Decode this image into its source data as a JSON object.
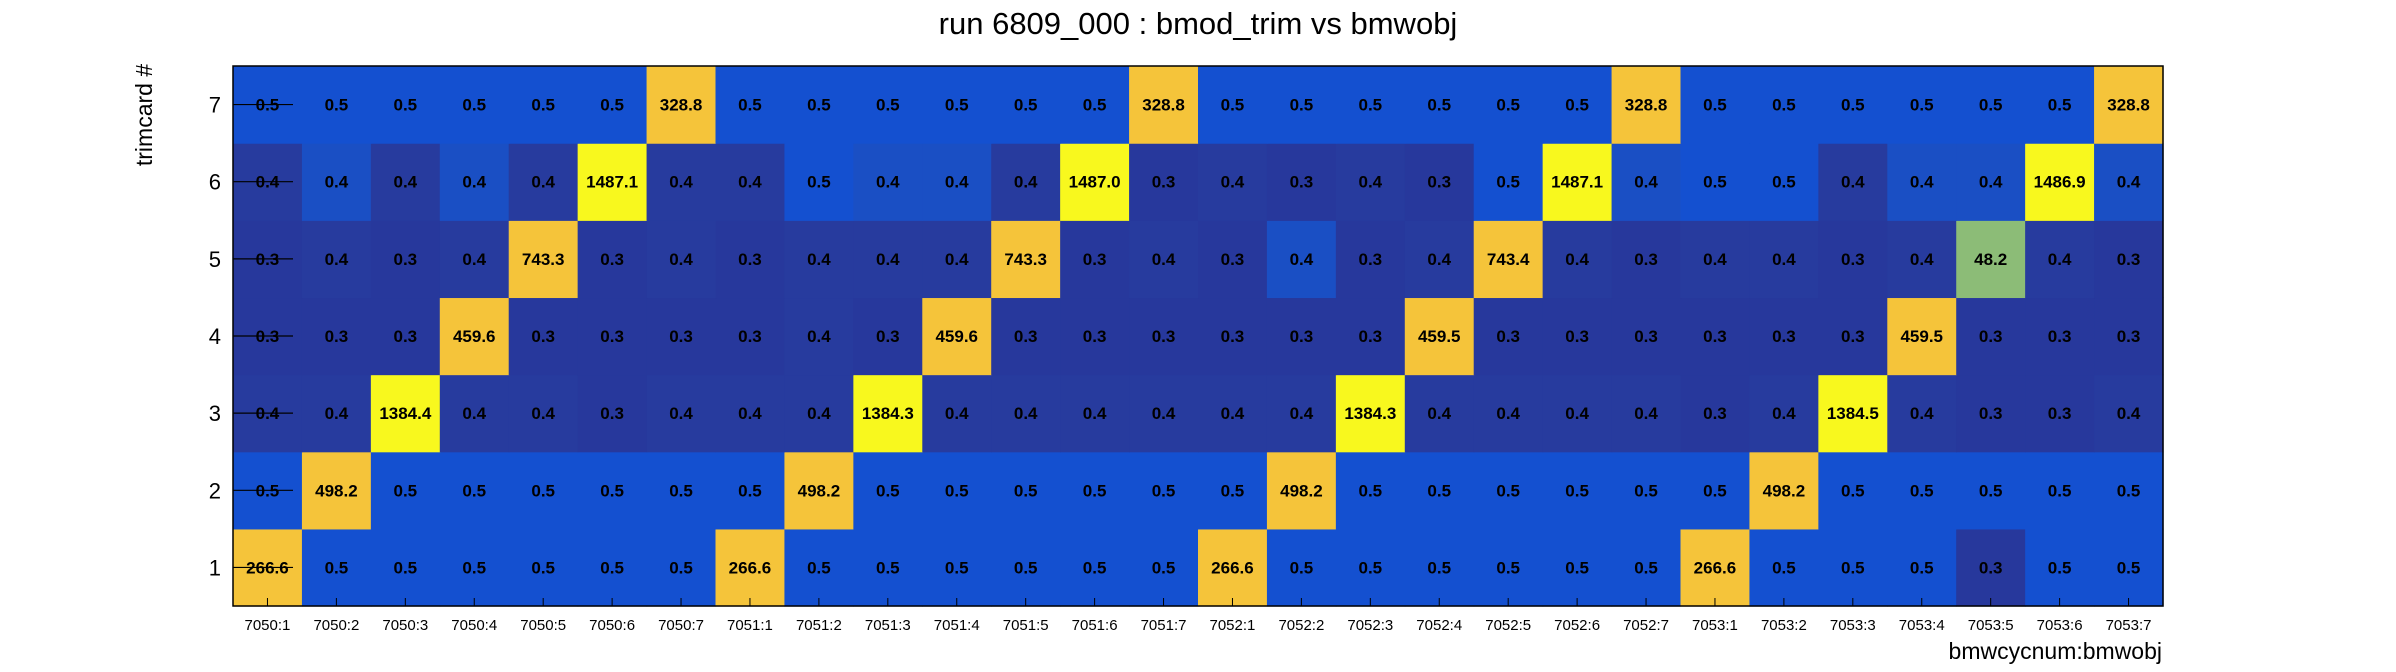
{
  "chart_data": {
    "type": "heatmap",
    "title": "run 6809_000 : bmod_trim vs bmwobj",
    "xlabel": "bmwcycnum:bmwobj",
    "ylabel": "trimcard #",
    "x_categories": [
      "7050:1",
      "7050:2",
      "7050:3",
      "7050:4",
      "7050:5",
      "7050:6",
      "7050:7",
      "7051:1",
      "7051:2",
      "7051:3",
      "7051:4",
      "7051:5",
      "7051:6",
      "7051:7",
      "7052:1",
      "7052:2",
      "7052:3",
      "7052:4",
      "7052:5",
      "7052:6",
      "7052:7",
      "7053:1",
      "7053:2",
      "7053:3",
      "7053:4",
      "7053:5",
      "7053:6",
      "7053:7"
    ],
    "y_categories": [
      "1",
      "2",
      "3",
      "4",
      "5",
      "6",
      "7"
    ],
    "value_labels": [
      [
        "266.6",
        "0.5",
        "0.5",
        "0.5",
        "0.5",
        "0.5",
        "0.5",
        "266.6",
        "0.5",
        "0.5",
        "0.5",
        "0.5",
        "0.5",
        "0.5",
        "266.6",
        "0.5",
        "0.5",
        "0.5",
        "0.5",
        "0.5",
        "0.5",
        "266.6",
        "0.5",
        "0.5",
        "0.5",
        "0.3",
        "0.5",
        "0.5"
      ],
      [
        "0.5",
        "498.2",
        "0.5",
        "0.5",
        "0.5",
        "0.5",
        "0.5",
        "0.5",
        "498.2",
        "0.5",
        "0.5",
        "0.5",
        "0.5",
        "0.5",
        "0.5",
        "498.2",
        "0.5",
        "0.5",
        "0.5",
        "0.5",
        "0.5",
        "0.5",
        "498.2",
        "0.5",
        "0.5",
        "0.5",
        "0.5",
        "0.5"
      ],
      [
        "0.4",
        "0.4",
        "1384.4",
        "0.4",
        "0.4",
        "0.3",
        "0.4",
        "0.4",
        "0.4",
        "1384.3",
        "0.4",
        "0.4",
        "0.4",
        "0.4",
        "0.4",
        "0.4",
        "1384.3",
        "0.4",
        "0.4",
        "0.4",
        "0.4",
        "0.3",
        "0.4",
        "1384.5",
        "0.4",
        "0.3",
        "0.3",
        "0.4"
      ],
      [
        "0.3",
        "0.3",
        "0.3",
        "459.6",
        "0.3",
        "0.3",
        "0.3",
        "0.3",
        "0.4",
        "0.3",
        "459.6",
        "0.3",
        "0.3",
        "0.3",
        "0.3",
        "0.3",
        "0.3",
        "459.5",
        "0.3",
        "0.3",
        "0.3",
        "0.3",
        "0.3",
        "0.3",
        "459.5",
        "0.3",
        "0.3",
        "0.3"
      ],
      [
        "0.3",
        "0.4",
        "0.3",
        "0.4",
        "743.3",
        "0.3",
        "0.4",
        "0.3",
        "0.4",
        "0.4",
        "0.4",
        "743.3",
        "0.3",
        "0.4",
        "0.3",
        "0.4",
        "0.3",
        "0.4",
        "743.4",
        "0.4",
        "0.3",
        "0.4",
        "0.4",
        "0.3",
        "0.4",
        "48.2",
        "0.4",
        "0.3"
      ],
      [
        "0.4",
        "0.4",
        "0.4",
        "0.4",
        "0.4",
        "1487.1",
        "0.4",
        "0.4",
        "0.5",
        "0.4",
        "0.4",
        "0.4",
        "1487.0",
        "0.3",
        "0.4",
        "0.3",
        "0.4",
        "0.3",
        "0.5",
        "1487.1",
        "0.4",
        "0.5",
        "0.5",
        "0.4",
        "0.4",
        "0.4",
        "1486.9",
        "0.4"
      ],
      [
        "0.5",
        "0.5",
        "0.5",
        "0.5",
        "0.5",
        "0.5",
        "328.8",
        "0.5",
        "0.5",
        "0.5",
        "0.5",
        "0.5",
        "0.5",
        "328.8",
        "0.5",
        "0.5",
        "0.5",
        "0.5",
        "0.5",
        "0.5",
        "328.8",
        "0.5",
        "0.5",
        "0.5",
        "0.5",
        "0.5",
        "0.5",
        "328.8"
      ]
    ],
    "colors": {
      "value_0.3": "#27389c",
      "value_0.4_low": "#273b9e",
      "value_0.4_high": "#1a4fc4",
      "value_0.5": "#1450d0",
      "value_48": "#8cbc77",
      "value_266_743": "#f5c43a",
      "value_1384_1487": "#f8f81e",
      "frame": "#000000"
    },
    "cell_color_keys": [
      [
        "266",
        "0.5",
        "0.5",
        "0.5",
        "0.5",
        "0.5",
        "0.5",
        "266",
        "0.5",
        "0.5",
        "0.5",
        "0.5",
        "0.5",
        "0.5",
        "266",
        "0.5",
        "0.5",
        "0.5",
        "0.5",
        "0.5",
        "0.5",
        "266",
        "0.5",
        "0.5",
        "0.5",
        "0.3",
        "0.5",
        "0.5"
      ],
      [
        "0.5",
        "498",
        "0.5",
        "0.5",
        "0.5",
        "0.5",
        "0.5",
        "0.5",
        "498",
        "0.5",
        "0.5",
        "0.5",
        "0.5",
        "0.5",
        "0.5",
        "498",
        "0.5",
        "0.5",
        "0.5",
        "0.5",
        "0.5",
        "0.5",
        "498",
        "0.5",
        "0.5",
        "0.5",
        "0.5",
        "0.5"
      ],
      [
        "0.4l",
        "0.4l",
        "1384",
        "0.4l",
        "0.4l",
        "0.3",
        "0.4l",
        "0.4l",
        "0.4l",
        "1384",
        "0.4l",
        "0.4l",
        "0.4l",
        "0.4l",
        "0.4l",
        "0.4l",
        "1384",
        "0.4l",
        "0.4l",
        "0.4l",
        "0.4l",
        "0.3",
        "0.4l",
        "1384",
        "0.4l",
        "0.3",
        "0.3",
        "0.4l"
      ],
      [
        "0.3",
        "0.3",
        "0.3",
        "459",
        "0.3",
        "0.3",
        "0.3",
        "0.3",
        "0.4l",
        "0.3",
        "459",
        "0.3",
        "0.3",
        "0.3",
        "0.3",
        "0.3",
        "0.3",
        "459",
        "0.3",
        "0.3",
        "0.3",
        "0.3",
        "0.3",
        "0.3",
        "459",
        "0.3",
        "0.3",
        "0.3"
      ],
      [
        "0.3",
        "0.4l",
        "0.3",
        "0.4l",
        "743",
        "0.3",
        "0.4l",
        "0.3",
        "0.4l",
        "0.4l",
        "0.4l",
        "743",
        "0.3",
        "0.4l",
        "0.3",
        "0.4h",
        "0.3",
        "0.4l",
        "743",
        "0.4l",
        "0.3",
        "0.4l",
        "0.4l",
        "0.3",
        "0.4l",
        "48",
        "0.4l",
        "0.3"
      ],
      [
        "0.4l",
        "0.4h",
        "0.4l",
        "0.4h",
        "0.4l",
        "1487",
        "0.4l",
        "0.4l",
        "0.5",
        "0.4h",
        "0.4h",
        "0.4l",
        "1487",
        "0.3",
        "0.4l",
        "0.3",
        "0.4l",
        "0.3",
        "0.5",
        "1487",
        "0.4h",
        "0.5",
        "0.5",
        "0.4l",
        "0.4h",
        "0.4h",
        "1487",
        "0.4h"
      ],
      [
        "0.5",
        "0.5",
        "0.5",
        "0.5",
        "0.5",
        "0.5",
        "328",
        "0.5",
        "0.5",
        "0.5",
        "0.5",
        "0.5",
        "0.5",
        "328",
        "0.5",
        "0.5",
        "0.5",
        "0.5",
        "0.5",
        "0.5",
        "328",
        "0.5",
        "0.5",
        "0.5",
        "0.5",
        "0.5",
        "0.5",
        "328"
      ]
    ]
  }
}
